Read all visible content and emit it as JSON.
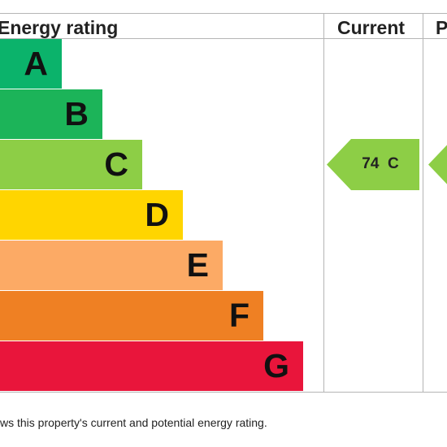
{
  "chart_data": {
    "type": "bar",
    "headers": {
      "rating": "Energy rating",
      "current": "Current",
      "potential": "P"
    },
    "bands": [
      {
        "letter": "A",
        "color": "#0bb36b"
      },
      {
        "letter": "B",
        "color": "#1cb459"
      },
      {
        "letter": "C",
        "color": "#8dce46"
      },
      {
        "letter": "D",
        "color": "#ffd500"
      },
      {
        "letter": "E",
        "color": "#fcaa65"
      },
      {
        "letter": "F",
        "color": "#ef8023"
      },
      {
        "letter": "G",
        "color": "#e9153b"
      }
    ],
    "current": {
      "value": 74,
      "band": "C",
      "label": "74  C",
      "color": "#8dce46"
    },
    "potential": {
      "band": "C",
      "color": "#8dce46"
    }
  },
  "footer": {
    "text": "ws this property's current and potential energy rating."
  }
}
